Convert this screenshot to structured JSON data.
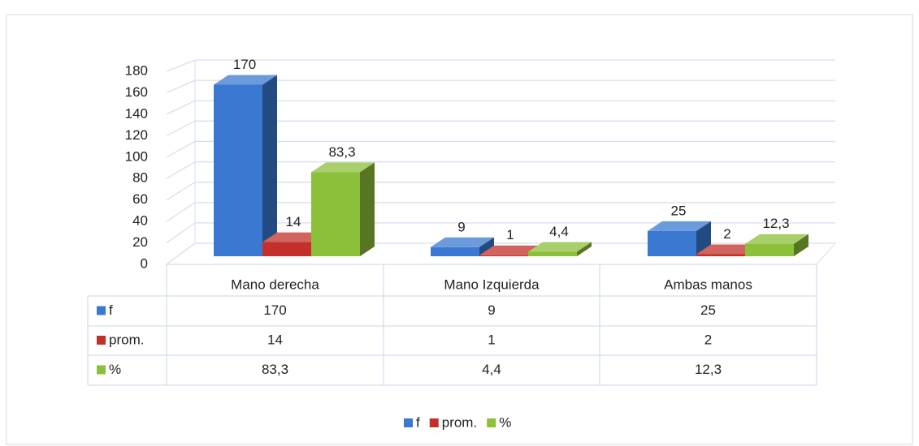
{
  "chart_data": {
    "type": "bar3d",
    "categories": [
      "Mano derecha",
      "Mano Izquierda",
      "Ambas manos"
    ],
    "series": [
      {
        "name": "f",
        "color": "#3a78d2",
        "values": [
          170,
          9,
          25
        ]
      },
      {
        "name": "prom.",
        "color": "#c3302b",
        "values": [
          14,
          1,
          2
        ]
      },
      {
        "name": "%",
        "color": "#8cbf3a",
        "values": [
          83.3,
          4.4,
          12.3
        ],
        "value_labels": [
          "83,3",
          "4,4",
          "12,3"
        ]
      }
    ],
    "ylim": [
      0,
      180
    ],
    "yticks": [
      0,
      20,
      40,
      60,
      80,
      100,
      120,
      140,
      160,
      180
    ],
    "grid": true,
    "legend": "bottom",
    "data_table": true
  }
}
